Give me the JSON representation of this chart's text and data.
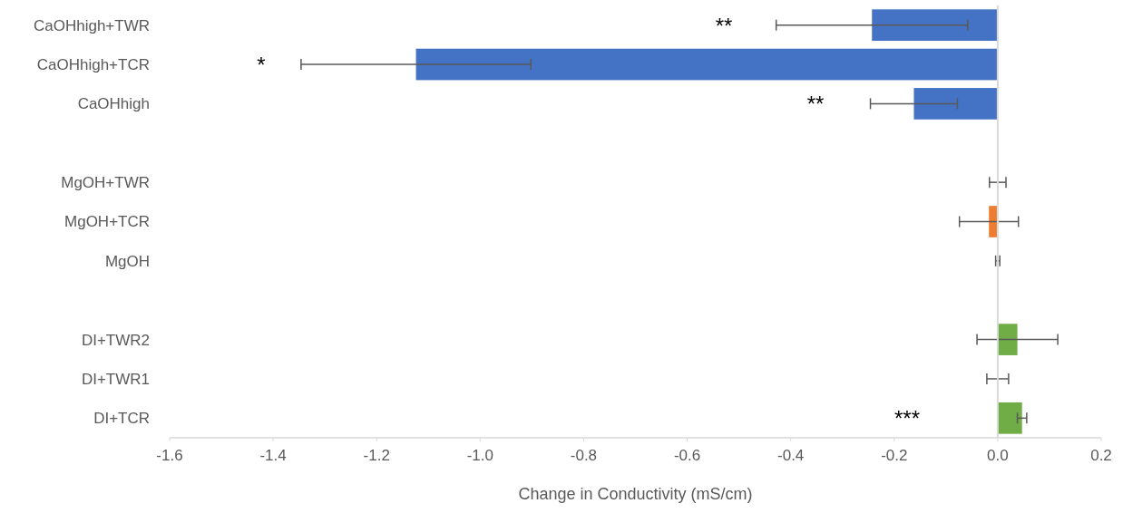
{
  "chart_data": {
    "type": "bar",
    "orientation": "horizontal",
    "xlabel": "Change in Conductivity (mS/cm)",
    "categories": [
      "CaOHhigh+TWR",
      "CaOHhigh+TCR",
      "CaOHhigh",
      null,
      "MgOH+TWR",
      "MgOH+TCR",
      "MgOH",
      null,
      "DI+TWR2",
      "DI+TWR1",
      "DI+TCR"
    ],
    "values": [
      -0.243,
      -1.124,
      -0.162,
      null,
      0.0,
      -0.017,
      0.0,
      null,
      0.038,
      0.0,
      0.047
    ],
    "errors": [
      0.185,
      0.222,
      0.084,
      null,
      0.016,
      0.057,
      0.004,
      null,
      0.078,
      0.021,
      0.009
    ],
    "colors": [
      "#4472c4",
      "#4472c4",
      "#4472c4",
      null,
      "#4472c4",
      "#ed7d31",
      "#4472c4",
      null,
      "#70ad47",
      "#70ad47",
      "#70ad47"
    ],
    "xlim": [
      -1.6,
      0.2
    ],
    "xticks": [
      -1.6,
      -1.4,
      -1.2,
      {
        "value": -1,
        "label": "-1.0"
      },
      -0.8,
      -0.6,
      -0.4,
      -0.2,
      {
        "value": 0,
        "label": "0.0"
      },
      0.2
    ],
    "annotations": [
      "**",
      "*",
      "**",
      "***"
    ]
  }
}
